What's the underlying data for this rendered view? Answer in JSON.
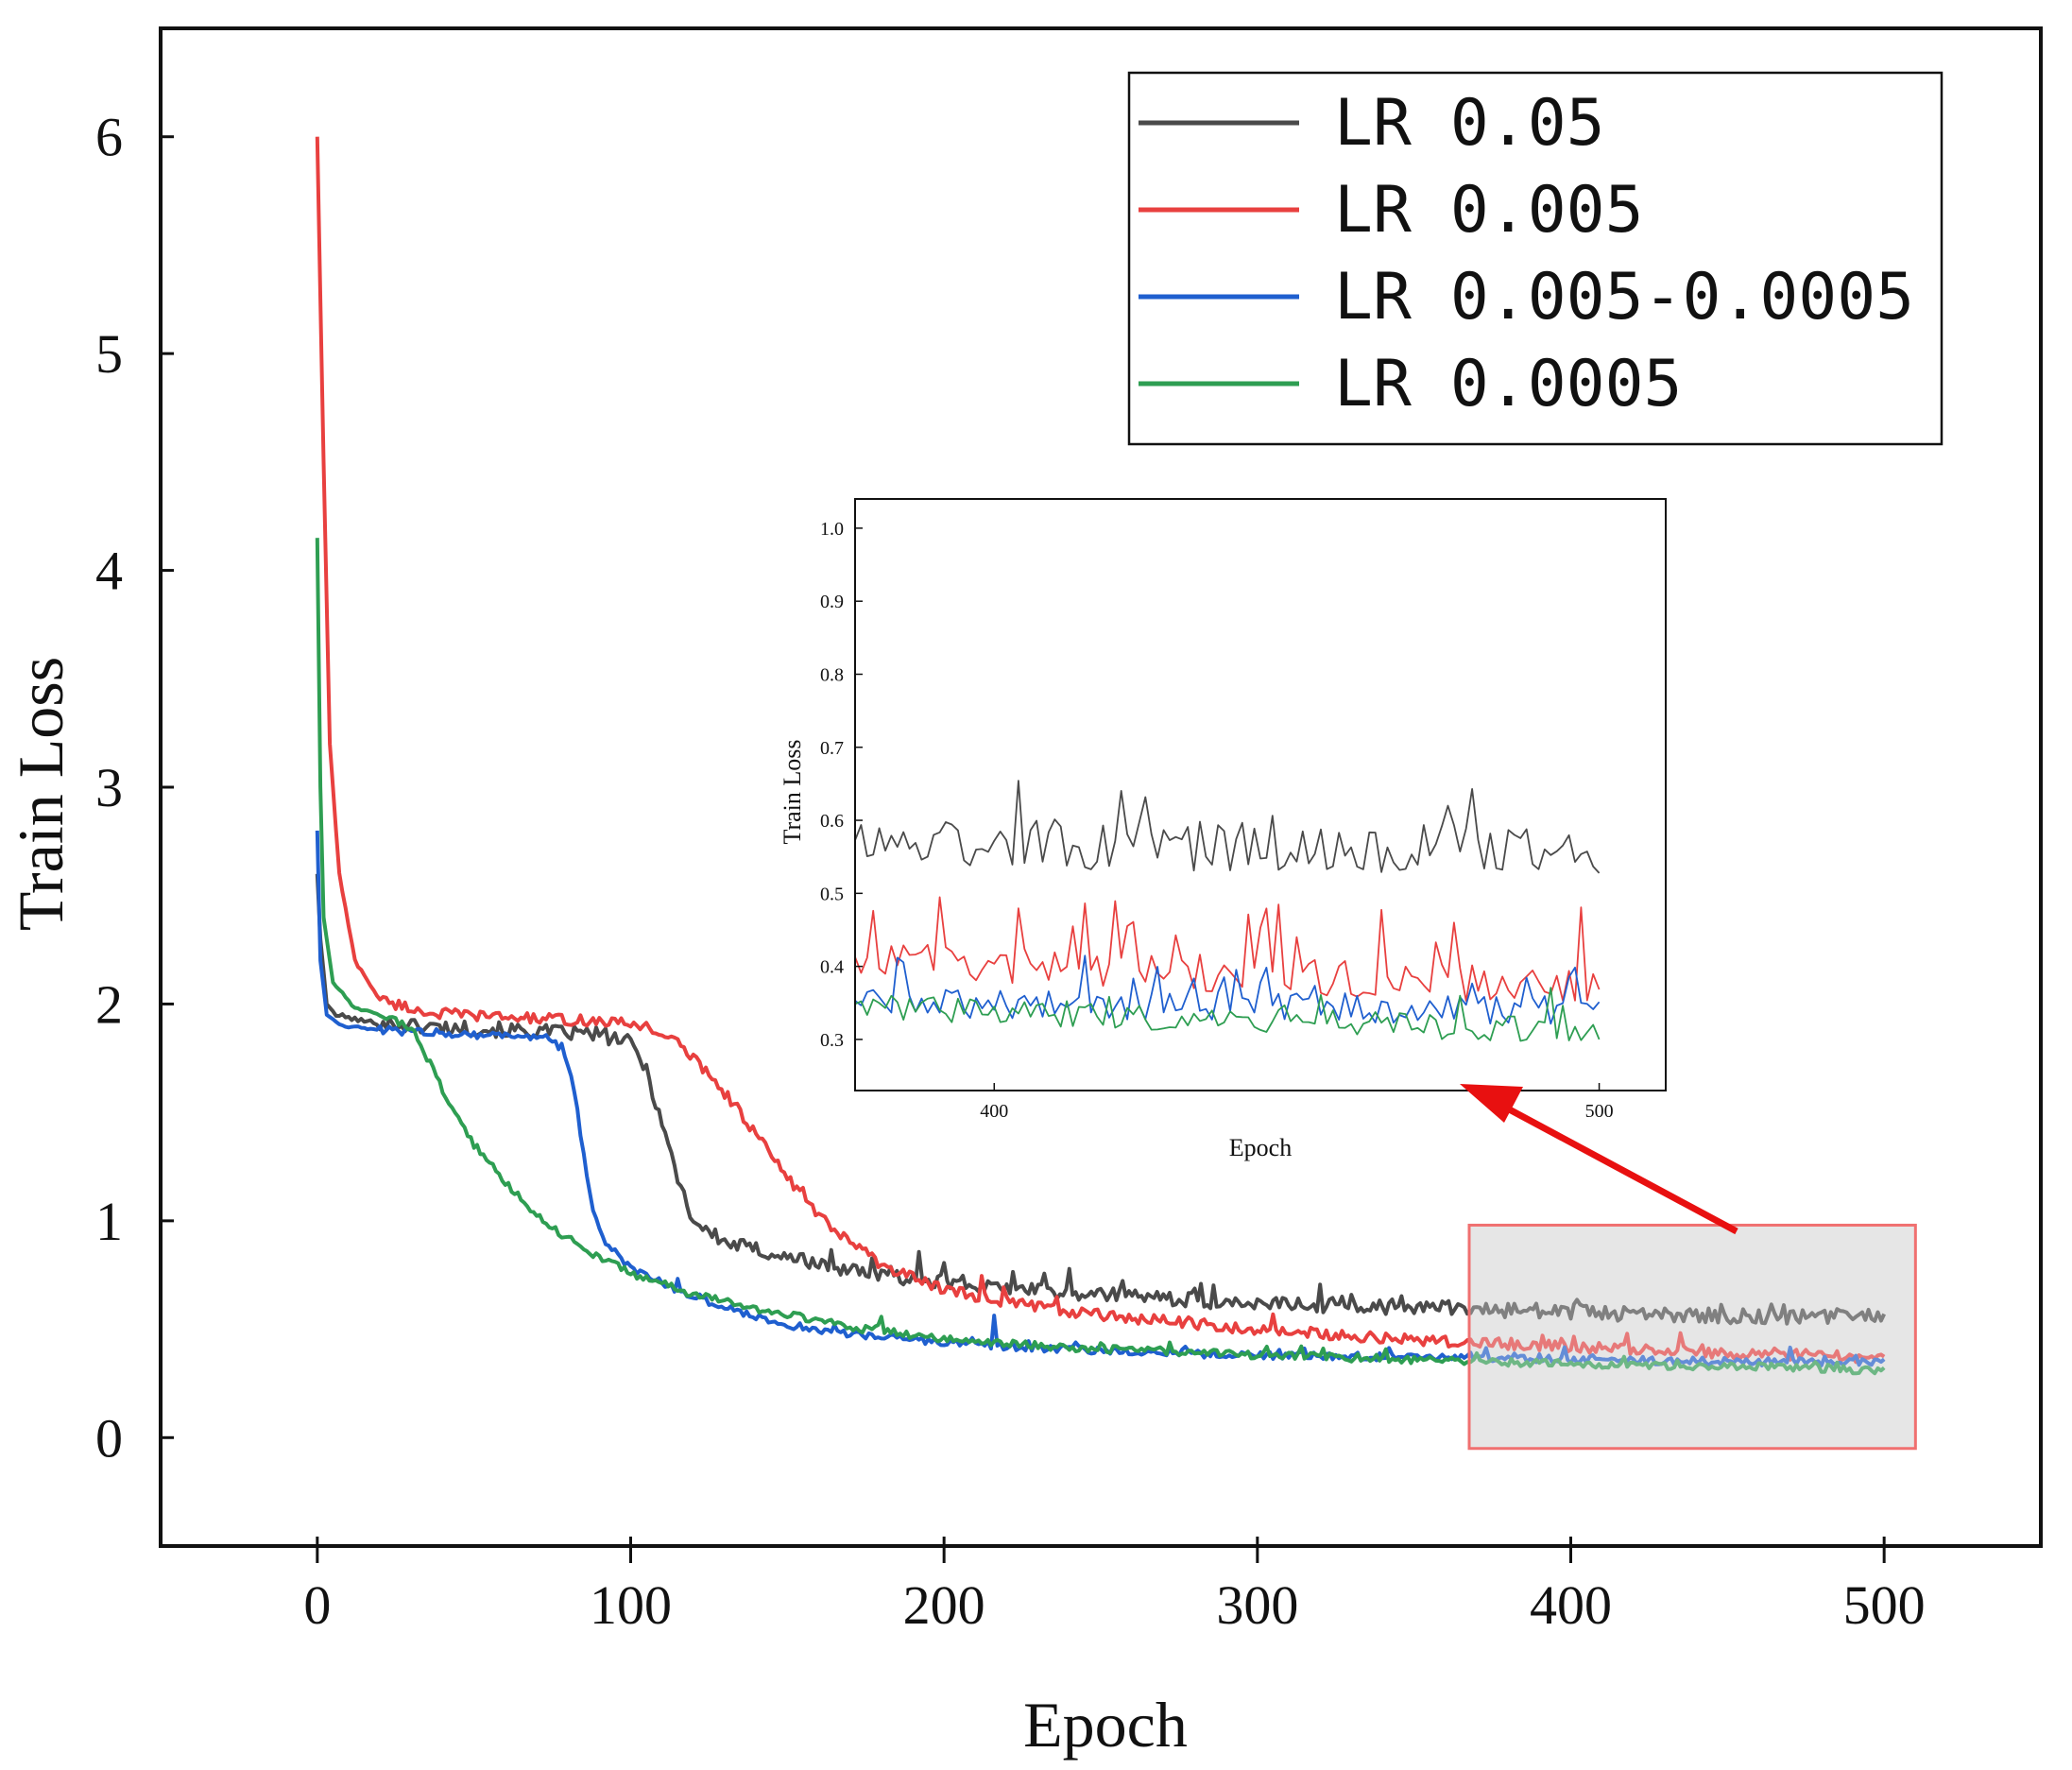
{
  "chart_data": [
    {
      "id": "main",
      "type": "line",
      "title": "",
      "xlabel": "Epoch",
      "ylabel": "Train Loss",
      "xlim": [
        -50,
        550
      ],
      "ylim": [
        -0.5,
        6.5
      ],
      "xticks": [
        0,
        100,
        200,
        300,
        400,
        500
      ],
      "yticks": [
        0,
        1,
        2,
        3,
        4,
        5,
        6
      ],
      "legend_position": "top-right",
      "series": [
        {
          "name": "LR 0.05",
          "color": "#4a4a4a",
          "points": [
            [
              0,
              2.6
            ],
            [
              1,
              2.3
            ],
            [
              3,
              2.0
            ],
            [
              6,
              1.95
            ],
            [
              15,
              1.92
            ],
            [
              30,
              1.9
            ],
            [
              60,
              1.88
            ],
            [
              90,
              1.86
            ],
            [
              100,
              1.82
            ],
            [
              105,
              1.7
            ],
            [
              110,
              1.45
            ],
            [
              115,
              1.2
            ],
            [
              120,
              1.0
            ],
            [
              130,
              0.9
            ],
            [
              145,
              0.85
            ],
            [
              160,
              0.8
            ],
            [
              180,
              0.75
            ],
            [
              200,
              0.72
            ],
            [
              230,
              0.68
            ],
            [
              260,
              0.65
            ],
            [
              300,
              0.62
            ],
            [
              350,
              0.6
            ],
            [
              400,
              0.58
            ],
            [
              450,
              0.56
            ],
            [
              500,
              0.56
            ]
          ],
          "noise": 0.035,
          "spikes": [
            [
              192,
              0.12
            ],
            [
              200,
              0.1
            ],
            [
              240,
              0.08
            ],
            [
              282,
              0.07
            ],
            [
              402,
              0.06
            ],
            [
              448,
              0.05
            ]
          ]
        },
        {
          "name": "LR 0.005",
          "color": "#e8403f",
          "points": [
            [
              0,
              6.0
            ],
            [
              2,
              4.5
            ],
            [
              4,
              3.2
            ],
            [
              7,
              2.6
            ],
            [
              12,
              2.2
            ],
            [
              20,
              2.02
            ],
            [
              35,
              1.96
            ],
            [
              60,
              1.94
            ],
            [
              90,
              1.92
            ],
            [
              105,
              1.9
            ],
            [
              115,
              1.82
            ],
            [
              125,
              1.68
            ],
            [
              135,
              1.5
            ],
            [
              145,
              1.3
            ],
            [
              155,
              1.1
            ],
            [
              165,
              0.95
            ],
            [
              180,
              0.8
            ],
            [
              200,
              0.68
            ],
            [
              230,
              0.6
            ],
            [
              260,
              0.55
            ],
            [
              300,
              0.5
            ],
            [
              350,
              0.45
            ],
            [
              400,
              0.42
            ],
            [
              450,
              0.39
            ],
            [
              500,
              0.37
            ]
          ],
          "noise": 0.025,
          "spikes": [
            [
              212,
              0.08
            ],
            [
              305,
              0.06
            ],
            [
              435,
              0.1
            ],
            [
              418,
              0.06
            ],
            [
              391,
              0.06
            ]
          ]
        },
        {
          "name": "LR 0.005-0.0005",
          "color": "#1f5fcf",
          "points": [
            [
              0,
              2.8
            ],
            [
              1,
              2.2
            ],
            [
              3,
              1.95
            ],
            [
              8,
              1.9
            ],
            [
              20,
              1.88
            ],
            [
              50,
              1.86
            ],
            [
              72,
              1.85
            ],
            [
              78,
              1.8
            ],
            [
              82,
              1.6
            ],
            [
              85,
              1.3
            ],
            [
              88,
              1.05
            ],
            [
              92,
              0.9
            ],
            [
              100,
              0.78
            ],
            [
              115,
              0.68
            ],
            [
              130,
              0.6
            ],
            [
              150,
              0.52
            ],
            [
              180,
              0.46
            ],
            [
              210,
              0.43
            ],
            [
              250,
              0.4
            ],
            [
              300,
              0.38
            ],
            [
              350,
              0.37
            ],
            [
              400,
              0.36
            ],
            [
              450,
              0.35
            ],
            [
              500,
              0.35
            ]
          ],
          "noise": 0.018,
          "spikes": [
            [
              216,
              0.1
            ],
            [
              115,
              0.05
            ],
            [
              398,
              0.05
            ],
            [
              470,
              0.05
            ]
          ]
        },
        {
          "name": "LR 0.0005",
          "color": "#2e9e52",
          "points": [
            [
              0,
              4.15
            ],
            [
              1,
              3.0
            ],
            [
              2,
              2.4
            ],
            [
              5,
              2.1
            ],
            [
              12,
              1.98
            ],
            [
              25,
              1.93
            ],
            [
              32,
              1.85
            ],
            [
              40,
              1.6
            ],
            [
              50,
              1.35
            ],
            [
              60,
              1.18
            ],
            [
              72,
              1.0
            ],
            [
              85,
              0.87
            ],
            [
              100,
              0.76
            ],
            [
              120,
              0.66
            ],
            [
              145,
              0.58
            ],
            [
              175,
              0.5
            ],
            [
              210,
              0.44
            ],
            [
              250,
              0.41
            ],
            [
              300,
              0.38
            ],
            [
              350,
              0.36
            ],
            [
              400,
              0.34
            ],
            [
              450,
              0.33
            ],
            [
              500,
              0.31
            ]
          ],
          "noise": 0.018,
          "spikes": [
            [
              180,
              0.07
            ],
            [
              272,
              0.06
            ],
            [
              321,
              0.05
            ],
            [
              370,
              0.05
            ]
          ]
        }
      ],
      "zoom_box": {
        "x_range": [
          370,
          510
        ],
        "y_range": [
          -0.05,
          0.98
        ]
      }
    },
    {
      "id": "inset",
      "type": "line",
      "title": "",
      "xlabel": "Epoch",
      "ylabel": "Train Loss",
      "xlim": [
        377,
        511
      ],
      "ylim": [
        0.23,
        1.04
      ],
      "xticks": [
        400,
        500
      ],
      "yticks": [
        0.3,
        0.4,
        0.5,
        0.6,
        0.7,
        0.8,
        0.9,
        1.0
      ],
      "series": [
        {
          "name": "LR 0.05",
          "color": "#4a4a4a",
          "base": 0.57,
          "end": 0.56,
          "amp": 0.035,
          "spike_prob": 0.12,
          "spike": 0.06
        },
        {
          "name": "LR 0.005",
          "color": "#e8403f",
          "base": 0.41,
          "end": 0.37,
          "amp": 0.025,
          "spike_prob": 0.12,
          "spike": 0.07
        },
        {
          "name": "LR 0.005-0.0005",
          "color": "#1f5fcf",
          "base": 0.35,
          "end": 0.34,
          "amp": 0.02,
          "spike_prob": 0.1,
          "spike": 0.04
        },
        {
          "name": "LR 0.0005",
          "color": "#2e9e52",
          "base": 0.345,
          "end": 0.31,
          "amp": 0.018,
          "spike_prob": 0.08,
          "spike": 0.035
        }
      ]
    }
  ],
  "legend": {
    "entries": [
      {
        "label": "LR 0.05",
        "color": "#4a4a4a"
      },
      {
        "label": "LR 0.005",
        "color": "#e8403f"
      },
      {
        "label": "LR 0.005-0.0005",
        "color": "#1f5fcf"
      },
      {
        "label": "LR 0.0005",
        "color": "#2e9e52"
      }
    ]
  },
  "annotation": {
    "arrow_color": "#e81010",
    "zoom_fill": "#e6e6e6",
    "zoom_edge": "#f07070"
  }
}
